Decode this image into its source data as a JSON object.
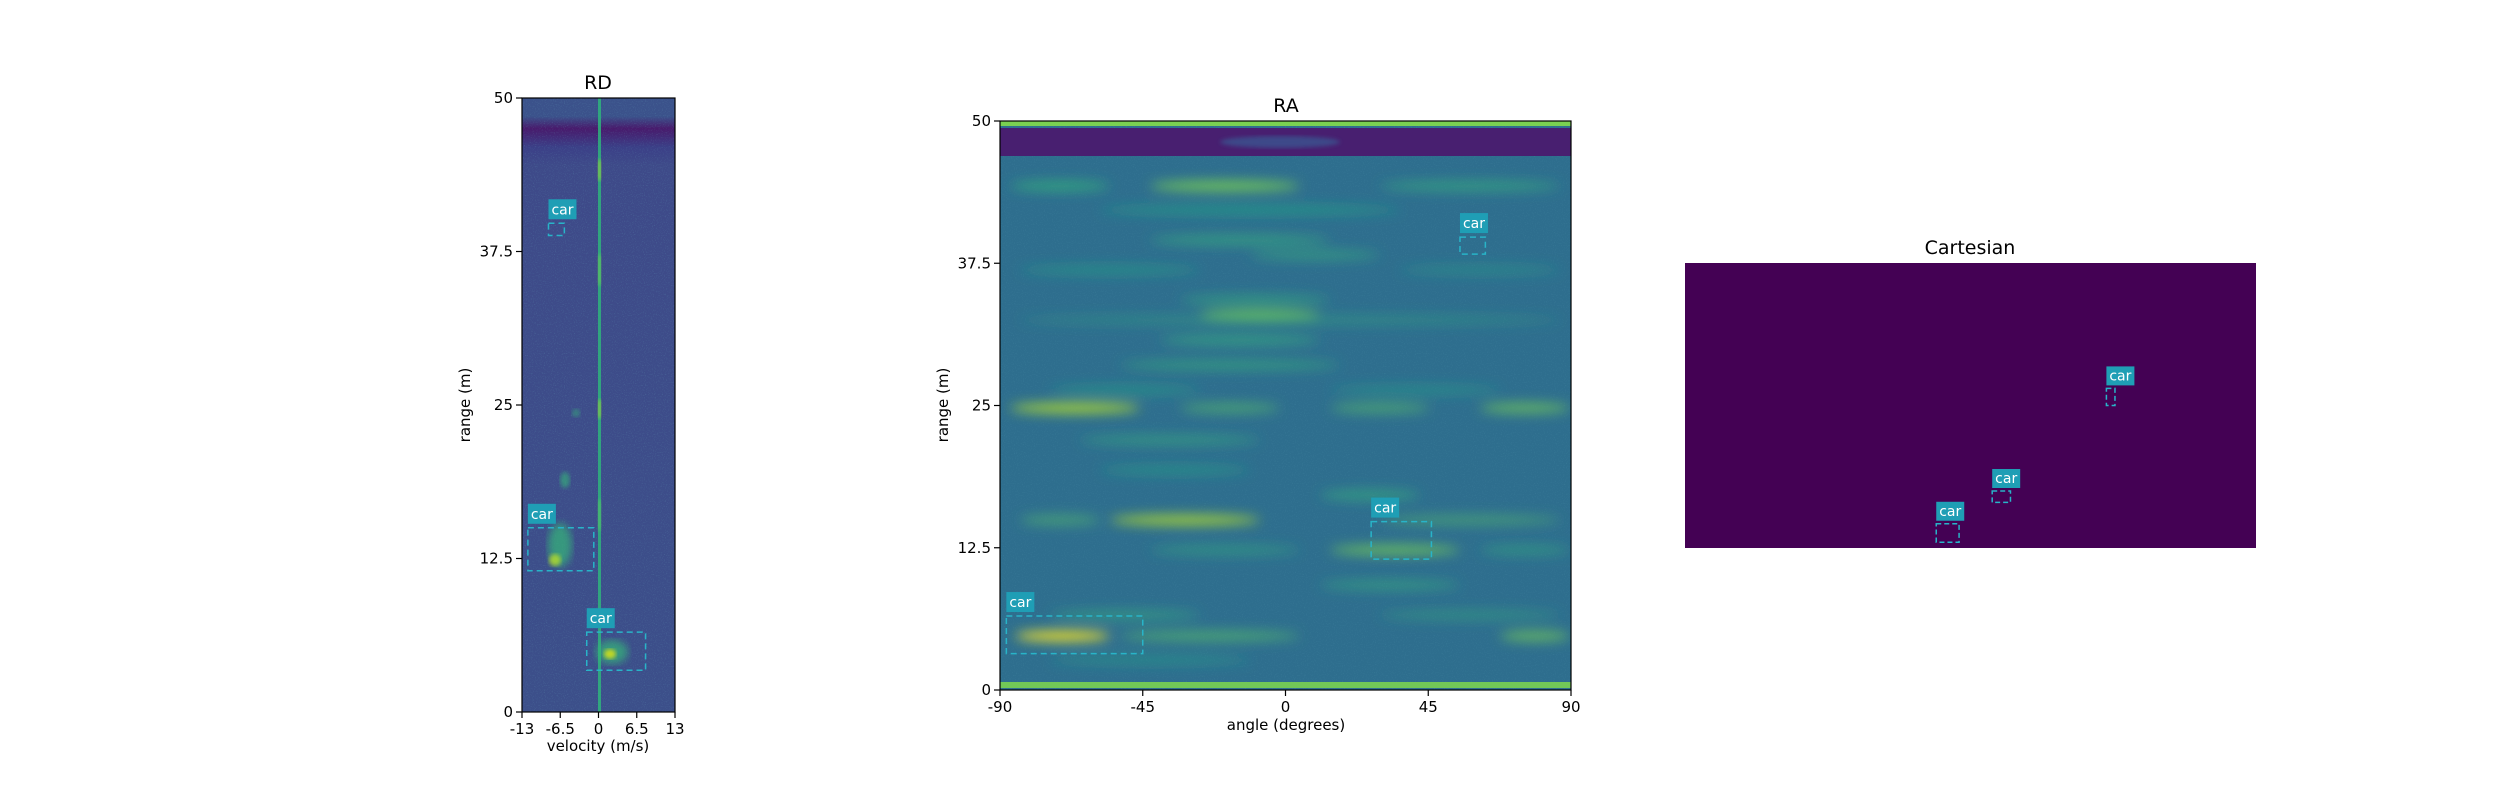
{
  "colors": {
    "background": "#ffffff",
    "viridis_dark": "#440154",
    "viridis_blue": "#3b528b",
    "viridis_teal": "#21918c",
    "viridis_green": "#5ec962",
    "viridis_yellow": "#fde725",
    "box_label_bg": "#1f9eb5",
    "box_outline": "#28b4c8"
  },
  "chart_data": [
    {
      "id": "rd",
      "type": "heatmap",
      "title": "RD",
      "xlabel": "velocity (m/s)",
      "ylabel": "range (m)",
      "xlim": [
        -13,
        13
      ],
      "ylim": [
        0,
        50
      ],
      "xticks": [
        -13,
        -6.5,
        0,
        6.5,
        13
      ],
      "xticklabels": [
        "-13",
        "-6.5",
        "0",
        "6.5",
        "13"
      ],
      "yticks": [
        0,
        12.5,
        25,
        37.5,
        50
      ],
      "yticklabels": [
        "0",
        "12.5",
        "25",
        "37.5",
        "50"
      ],
      "detections": [
        {
          "label": "car",
          "x0": -8.5,
          "x1": -5.8,
          "y0": 38.8,
          "y1": 39.8
        },
        {
          "label": "car",
          "x0": -12,
          "x1": -0.8,
          "y0": 11.5,
          "y1": 15
        },
        {
          "label": "car",
          "x0": -2,
          "x1": 8,
          "y0": 3.4,
          "y1": 6.5
        }
      ]
    },
    {
      "id": "ra",
      "type": "heatmap",
      "title": "RA",
      "xlabel": "angle (degrees)",
      "ylabel": "range (m)",
      "xlim": [
        -90,
        90
      ],
      "ylim": [
        0,
        50
      ],
      "xticks": [
        -90,
        -45,
        0,
        45,
        90
      ],
      "xticklabels": [
        "-90",
        "-45",
        "0",
        "45",
        "90"
      ],
      "yticks": [
        0,
        12.5,
        25,
        37.5,
        50
      ],
      "yticklabels": [
        "0",
        "12.5",
        "25",
        "37.5",
        "50"
      ],
      "detections": [
        {
          "label": "car",
          "x0": 55,
          "x1": 63,
          "y0": 38.3,
          "y1": 39.8
        },
        {
          "label": "car",
          "x0": 27,
          "x1": 46,
          "y0": 11.5,
          "y1": 14.8
        },
        {
          "label": "car",
          "x0": -88,
          "x1": -45,
          "y0": 3.2,
          "y1": 6.5
        }
      ]
    },
    {
      "id": "cartesian",
      "type": "heatmap",
      "title": "Cartesian",
      "detections": [
        {
          "label": "car",
          "x0": 0.738,
          "x1": 0.753,
          "y0": 0.44,
          "y1": 0.5
        },
        {
          "label": "car",
          "x0": 0.538,
          "x1": 0.57,
          "y0": 0.8,
          "y1": 0.84
        },
        {
          "label": "car",
          "x0": 0.44,
          "x1": 0.48,
          "y0": 0.915,
          "y1": 0.98
        }
      ]
    }
  ]
}
